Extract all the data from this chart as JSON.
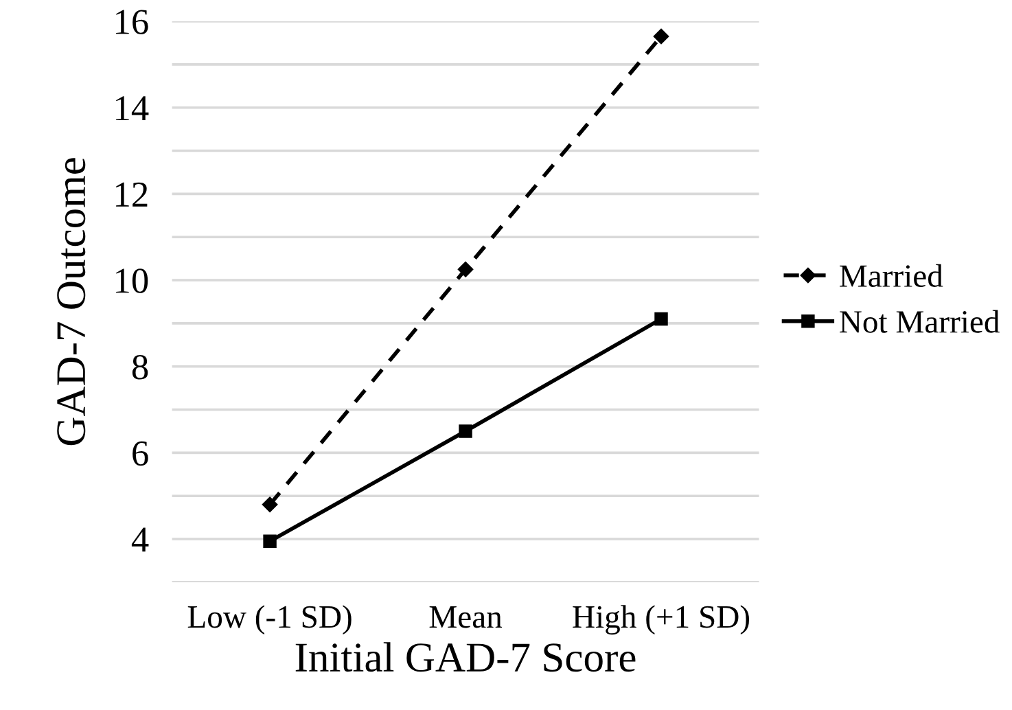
{
  "chart_data": {
    "type": "line",
    "xlabel": "Initial GAD-7 Score",
    "ylabel": "GAD-7 Outcome",
    "categories": [
      "Low (-1 SD)",
      "Mean",
      "High (+1 SD)"
    ],
    "series": [
      {
        "name": "Married",
        "color": "#000000",
        "values": [
          4.8,
          10.25,
          15.65
        ],
        "line_style": "dashed",
        "marker": "diamond"
      },
      {
        "name": "Not Married",
        "color": "#000000",
        "values": [
          3.95,
          6.5,
          9.1
        ],
        "line_style": "solid",
        "marker": "square"
      }
    ],
    "ylim": [
      3,
      16
    ],
    "yticks": [
      {
        "value": 3,
        "label": null
      },
      4,
      {
        "value": 5,
        "label": null
      },
      6,
      {
        "value": 7,
        "label": null
      },
      8,
      {
        "value": 9,
        "label": null
      },
      10,
      {
        "value": 11,
        "label": null
      },
      12,
      {
        "value": 13,
        "label": null
      },
      14,
      {
        "value": 15,
        "label": null
      },
      16
    ],
    "grid": "y",
    "legend": "right"
  }
}
